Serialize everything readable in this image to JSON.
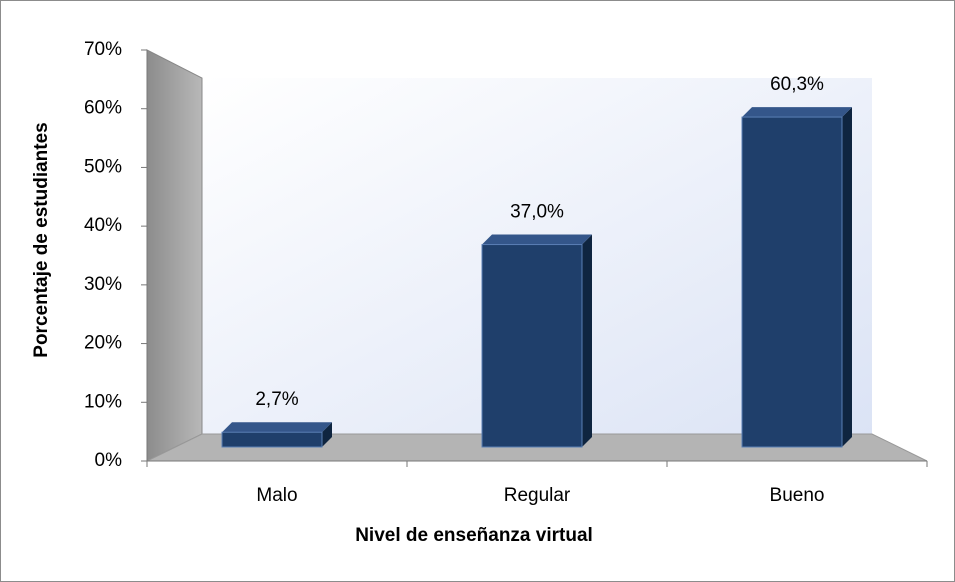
{
  "chart_data": {
    "type": "bar3d",
    "x_label": "Nivel de enseñanza virtual",
    "y_label": "Porcentaje de estudiantes",
    "categories": [
      "Malo",
      "Regular",
      "Bueno"
    ],
    "values": [
      2.7,
      37.0,
      60.3
    ],
    "value_labels": [
      "2,7%",
      "37,0%",
      "60,3%"
    ],
    "color": "#1f3f6b",
    "ylim": [
      0,
      70
    ],
    "yticks": [
      {
        "value": 0,
        "label": "0%"
      },
      {
        "value": 10,
        "label": "10%"
      },
      {
        "value": 20,
        "label": "20%"
      },
      {
        "value": 30,
        "label": "30%"
      },
      {
        "value": 40,
        "label": "40%"
      },
      {
        "value": 50,
        "label": "50%"
      },
      {
        "value": 60,
        "label": "60%"
      },
      {
        "value": 70,
        "label": "70%"
      }
    ]
  }
}
